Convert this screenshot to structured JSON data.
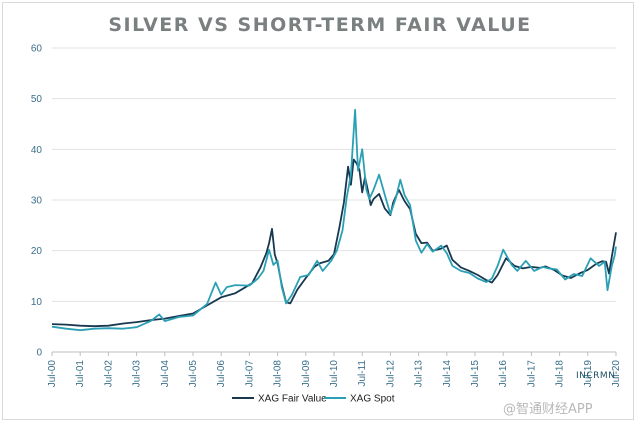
{
  "chart_data": {
    "type": "line",
    "title": "SILVER VS SHORT-TERM FAIR VALUE",
    "xlabel": "",
    "ylabel": "",
    "ylim": [
      0,
      60
    ],
    "yticks": [
      0,
      10,
      20,
      30,
      40,
      50,
      60
    ],
    "xlim": [
      2000.5,
      2020.5
    ],
    "xticks": [
      "Jul-00",
      "Jul-01",
      "Jul-02",
      "Jul-03",
      "Jul-04",
      "Jul-05",
      "Jul-06",
      "Jul-07",
      "Jul-08",
      "Jul-09",
      "Jul-10",
      "Jul-11",
      "Jul-12",
      "Jul-13",
      "Jul-14",
      "Jul-15",
      "Jul-16",
      "Jul-17",
      "Jul-18",
      "Jul-19",
      "Jul-20"
    ],
    "grid": true,
    "legend": "bottom-center",
    "series": [
      {
        "name": "XAG Fair Value",
        "color": "#17384f",
        "points": [
          [
            2000.5,
            5.5
          ],
          [
            2001.0,
            5.4
          ],
          [
            2001.5,
            5.2
          ],
          [
            2002.0,
            5.1
          ],
          [
            2002.5,
            5.2
          ],
          [
            2003.0,
            5.6
          ],
          [
            2003.5,
            5.9
          ],
          [
            2004.0,
            6.3
          ],
          [
            2004.5,
            6.6
          ],
          [
            2005.0,
            7.1
          ],
          [
            2005.5,
            7.6
          ],
          [
            2006.0,
            9.2
          ],
          [
            2006.5,
            10.8
          ],
          [
            2007.0,
            11.6
          ],
          [
            2007.3,
            12.6
          ],
          [
            2007.6,
            13.6
          ],
          [
            2007.9,
            16.8
          ],
          [
            2008.1,
            19.5
          ],
          [
            2008.2,
            21.5
          ],
          [
            2008.3,
            24.3
          ],
          [
            2008.4,
            19.2
          ],
          [
            2008.5,
            17.5
          ],
          [
            2008.65,
            13.2
          ],
          [
            2008.8,
            9.8
          ],
          [
            2008.95,
            9.6
          ],
          [
            2009.2,
            12.3
          ],
          [
            2009.5,
            14.6
          ],
          [
            2009.8,
            16.8
          ],
          [
            2010.0,
            17.5
          ],
          [
            2010.3,
            18.0
          ],
          [
            2010.5,
            19.3
          ],
          [
            2010.7,
            24.8
          ],
          [
            2010.85,
            29.5
          ],
          [
            2011.0,
            36.6
          ],
          [
            2011.1,
            33.0
          ],
          [
            2011.2,
            38.0
          ],
          [
            2011.3,
            37.2
          ],
          [
            2011.4,
            36.0
          ],
          [
            2011.5,
            31.5
          ],
          [
            2011.6,
            34.5
          ],
          [
            2011.7,
            32.0
          ],
          [
            2011.8,
            29.0
          ],
          [
            2011.9,
            30.2
          ],
          [
            2012.1,
            31.2
          ],
          [
            2012.3,
            28.3
          ],
          [
            2012.5,
            27.0
          ],
          [
            2012.6,
            29.5
          ],
          [
            2012.8,
            32.0
          ],
          [
            2013.0,
            29.8
          ],
          [
            2013.2,
            28.2
          ],
          [
            2013.4,
            23.3
          ],
          [
            2013.6,
            21.5
          ],
          [
            2013.8,
            21.6
          ],
          [
            2014.0,
            20.0
          ],
          [
            2014.3,
            20.4
          ],
          [
            2014.5,
            21.0
          ],
          [
            2014.7,
            18.2
          ],
          [
            2015.0,
            16.7
          ],
          [
            2015.3,
            16.0
          ],
          [
            2015.6,
            15.2
          ],
          [
            2015.9,
            14.2
          ],
          [
            2016.1,
            13.7
          ],
          [
            2016.3,
            15.2
          ],
          [
            2016.6,
            18.5
          ],
          [
            2016.9,
            17.0
          ],
          [
            2017.2,
            16.5
          ],
          [
            2017.5,
            16.8
          ],
          [
            2017.8,
            16.6
          ],
          [
            2018.0,
            16.9
          ],
          [
            2018.3,
            16.2
          ],
          [
            2018.6,
            15.1
          ],
          [
            2018.9,
            14.6
          ],
          [
            2019.2,
            15.5
          ],
          [
            2019.5,
            16.2
          ],
          [
            2019.8,
            17.4
          ],
          [
            2020.0,
            17.9
          ],
          [
            2020.15,
            17.8
          ],
          [
            2020.25,
            15.5
          ],
          [
            2020.35,
            18.8
          ],
          [
            2020.45,
            22.0
          ],
          [
            2020.5,
            23.6
          ]
        ]
      },
      {
        "name": "XAG Spot",
        "color": "#2ba0b5",
        "points": [
          [
            2000.5,
            5.0
          ],
          [
            2001.0,
            4.6
          ],
          [
            2001.5,
            4.3
          ],
          [
            2002.0,
            4.6
          ],
          [
            2002.5,
            4.7
          ],
          [
            2003.0,
            4.6
          ],
          [
            2003.5,
            4.9
          ],
          [
            2004.0,
            6.1
          ],
          [
            2004.3,
            7.4
          ],
          [
            2004.5,
            6.1
          ],
          [
            2005.0,
            6.9
          ],
          [
            2005.5,
            7.2
          ],
          [
            2006.0,
            9.5
          ],
          [
            2006.3,
            13.7
          ],
          [
            2006.5,
            11.3
          ],
          [
            2006.7,
            12.8
          ],
          [
            2007.0,
            13.2
          ],
          [
            2007.5,
            13.1
          ],
          [
            2007.8,
            14.5
          ],
          [
            2008.0,
            16.0
          ],
          [
            2008.2,
            20.2
          ],
          [
            2008.35,
            17.2
          ],
          [
            2008.5,
            18.0
          ],
          [
            2008.65,
            12.8
          ],
          [
            2008.8,
            9.6
          ],
          [
            2009.0,
            11.2
          ],
          [
            2009.3,
            14.8
          ],
          [
            2009.6,
            15.2
          ],
          [
            2009.9,
            18.0
          ],
          [
            2010.1,
            16.0
          ],
          [
            2010.4,
            18.0
          ],
          [
            2010.6,
            20.0
          ],
          [
            2010.8,
            24.0
          ],
          [
            2010.95,
            30.5
          ],
          [
            2011.1,
            35.0
          ],
          [
            2011.25,
            47.8
          ],
          [
            2011.35,
            35.8
          ],
          [
            2011.5,
            40.0
          ],
          [
            2011.65,
            32.0
          ],
          [
            2011.75,
            30.2
          ],
          [
            2011.9,
            32.0
          ],
          [
            2012.1,
            35.0
          ],
          [
            2012.3,
            31.0
          ],
          [
            2012.5,
            27.2
          ],
          [
            2012.7,
            30.5
          ],
          [
            2012.85,
            34.0
          ],
          [
            2013.0,
            31.0
          ],
          [
            2013.2,
            29.0
          ],
          [
            2013.4,
            22.0
          ],
          [
            2013.6,
            19.6
          ],
          [
            2013.8,
            21.3
          ],
          [
            2014.0,
            19.8
          ],
          [
            2014.3,
            21.0
          ],
          [
            2014.5,
            19.5
          ],
          [
            2014.7,
            17.0
          ],
          [
            2015.0,
            16.0
          ],
          [
            2015.3,
            15.6
          ],
          [
            2015.6,
            14.5
          ],
          [
            2015.9,
            13.8
          ],
          [
            2016.1,
            14.5
          ],
          [
            2016.3,
            17.0
          ],
          [
            2016.5,
            20.2
          ],
          [
            2016.8,
            17.2
          ],
          [
            2017.0,
            16.0
          ],
          [
            2017.3,
            18.0
          ],
          [
            2017.6,
            16.0
          ],
          [
            2017.9,
            16.8
          ],
          [
            2018.1,
            16.5
          ],
          [
            2018.4,
            16.3
          ],
          [
            2018.7,
            14.3
          ],
          [
            2019.0,
            15.4
          ],
          [
            2019.3,
            15.0
          ],
          [
            2019.6,
            18.5
          ],
          [
            2019.9,
            17.0
          ],
          [
            2020.1,
            17.8
          ],
          [
            2020.2,
            12.2
          ],
          [
            2020.35,
            17.0
          ],
          [
            2020.45,
            19.0
          ],
          [
            2020.5,
            20.8
          ]
        ]
      }
    ]
  },
  "watermark": "@智通财经APP",
  "logo_text": "INCRMN"
}
